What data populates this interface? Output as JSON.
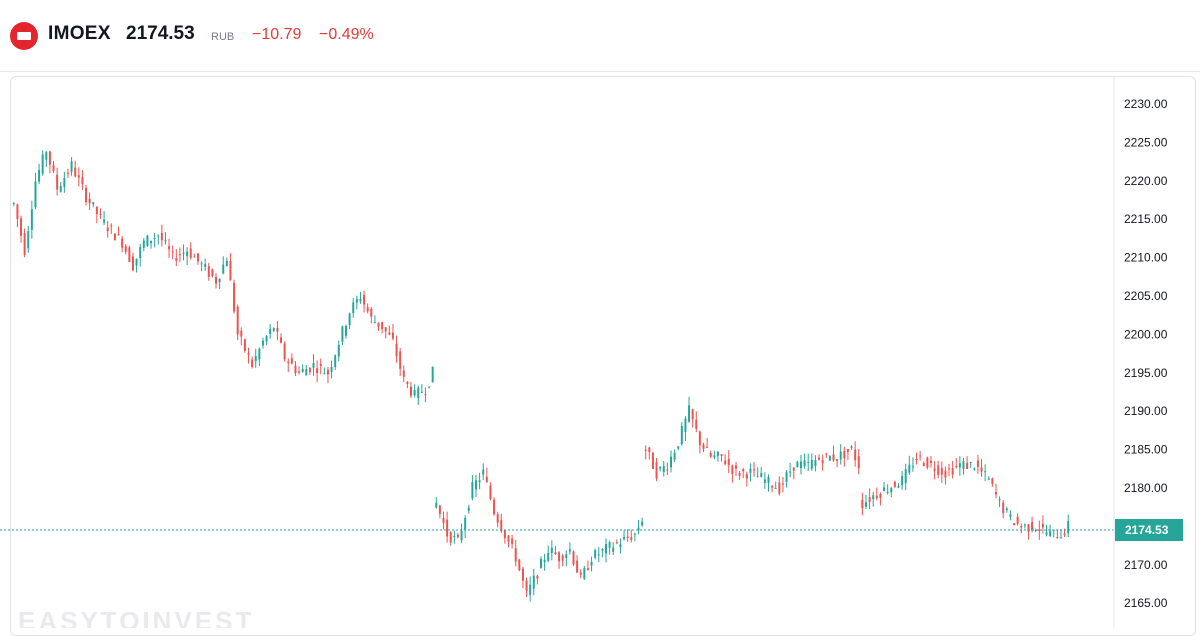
{
  "header": {
    "symbol": "IMOEX",
    "last_price": "2174.53",
    "currency": "RUB",
    "change": "−10.79",
    "change_percent": "−0.49%"
  },
  "watermark": "EASYTOINVEST",
  "colors": {
    "up": "#26a69a",
    "down": "#ef5350",
    "change_text": "#e03c3c",
    "last_price_line": "#26a69a",
    "logo": "#e3262d"
  },
  "chart_data": {
    "type": "candlestick",
    "title": "",
    "xlabel": "",
    "ylabel": "",
    "ylim": [
      2163,
      2233
    ],
    "yticks": [
      "2230.00",
      "2225.00",
      "2220.00",
      "2215.00",
      "2210.00",
      "2205.00",
      "2200.00",
      "2195.00",
      "2190.00",
      "2185.00",
      "2180.00",
      "2175.00",
      "2170.00",
      "2165.00"
    ],
    "last_price": "2174.53",
    "last_price_value": 2174.53,
    "grid": false,
    "trend_anchors": [
      [
        0,
        2217
      ],
      [
        3,
        2211
      ],
      [
        6,
        2220
      ],
      [
        9,
        2224
      ],
      [
        12,
        2219
      ],
      [
        16,
        2222
      ],
      [
        20,
        2218
      ],
      [
        24,
        2215
      ],
      [
        30,
        2212
      ],
      [
        33,
        2209
      ],
      [
        36,
        2212
      ],
      [
        40,
        2213
      ],
      [
        44,
        2210
      ],
      [
        48,
        2211
      ],
      [
        52,
        2209
      ],
      [
        56,
        2207
      ],
      [
        59,
        2210
      ],
      [
        62,
        2200
      ],
      [
        66,
        2196
      ],
      [
        69,
        2199
      ],
      [
        72,
        2201
      ],
      [
        75,
        2197
      ],
      [
        79,
        2195
      ],
      [
        83,
        2196
      ],
      [
        87,
        2195
      ],
      [
        90,
        2199
      ],
      [
        93,
        2203
      ],
      [
        96,
        2205
      ],
      [
        99,
        2202
      ],
      [
        102,
        2201
      ],
      [
        105,
        2199
      ],
      [
        108,
        2194
      ],
      [
        111,
        2192
      ],
      [
        114,
        2193
      ],
      [
        116,
        2195
      ],
      [
        117,
        2178
      ],
      [
        120,
        2174
      ],
      [
        123,
        2173
      ],
      [
        127,
        2180
      ],
      [
        130,
        2182
      ],
      [
        133,
        2177
      ],
      [
        136,
        2174
      ],
      [
        139,
        2171
      ],
      [
        142,
        2166
      ],
      [
        145,
        2169
      ],
      [
        148,
        2172
      ],
      [
        151,
        2171
      ],
      [
        154,
        2172
      ],
      [
        157,
        2168
      ],
      [
        160,
        2171
      ],
      [
        164,
        2172
      ],
      [
        168,
        2173
      ],
      [
        172,
        2174
      ],
      [
        174,
        2176
      ],
      [
        175,
        2185
      ],
      [
        178,
        2182
      ],
      [
        181,
        2183
      ],
      [
        184,
        2186
      ],
      [
        187,
        2190
      ],
      [
        190,
        2186
      ],
      [
        193,
        2184
      ],
      [
        196,
        2184
      ],
      [
        200,
        2182
      ],
      [
        204,
        2182
      ],
      [
        208,
        2181
      ],
      [
        212,
        2180
      ],
      [
        216,
        2183
      ],
      [
        220,
        2183
      ],
      [
        224,
        2184
      ],
      [
        228,
        2184
      ],
      [
        232,
        2185
      ],
      [
        234,
        2183
      ],
      [
        235,
        2178
      ],
      [
        238,
        2179
      ],
      [
        242,
        2180
      ],
      [
        246,
        2181
      ],
      [
        250,
        2184
      ],
      [
        254,
        2183
      ],
      [
        258,
        2182
      ],
      [
        262,
        2183
      ],
      [
        266,
        2183
      ],
      [
        270,
        2181
      ],
      [
        273,
        2178
      ],
      [
        276,
        2176
      ],
      [
        279,
        2175
      ],
      [
        283,
        2175
      ],
      [
        287,
        2174
      ],
      [
        290,
        2174
      ],
      [
        292,
        2175
      ]
    ]
  }
}
